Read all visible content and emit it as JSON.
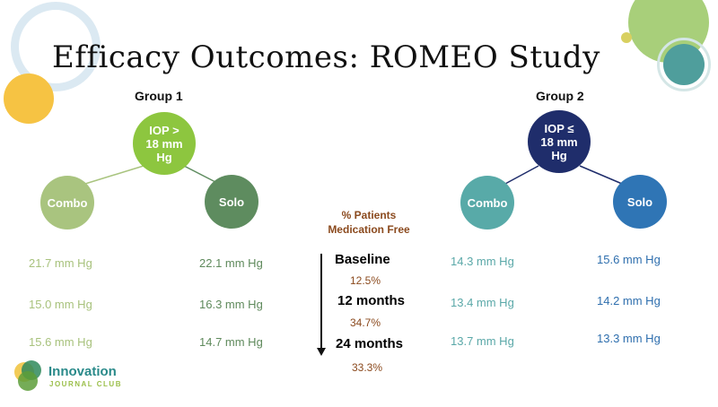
{
  "title": "Efficacy Outcomes: ROMEO Study",
  "group1": {
    "label": "Group 1",
    "criterion": "IOP >\n18 mm\nHg",
    "combo": "Combo",
    "solo": "Solo",
    "combo_values": [
      "21.7 mm Hg",
      "15.0 mm Hg",
      "15.6 mm Hg"
    ],
    "solo_values": [
      "22.1 mm Hg",
      "16.3 mm Hg",
      "14.7 mm Hg"
    ]
  },
  "group2": {
    "label": "Group 2",
    "criterion": "IOP ≤\n18 mm\nHg",
    "combo": "Combo",
    "solo": "Solo",
    "combo_values": [
      "14.3 mm Hg",
      "13.4 mm Hg",
      "13.7 mm Hg"
    ],
    "solo_values": [
      "15.6 mm Hg",
      "14.2 mm Hg",
      "13.3 mm Hg"
    ]
  },
  "middle": {
    "header_line1": "% Patients",
    "header_line2": "Medication Free",
    "timepoints": [
      {
        "label": "Baseline",
        "value": "12.5%"
      },
      {
        "label": "12 months",
        "value": "34.7%"
      },
      {
        "label": "24 months",
        "value": "33.3%"
      }
    ]
  },
  "logo": {
    "name": "Innovation",
    "sub": "JOURNAL CLUB"
  },
  "colors": {
    "g1_main": "#8dc63f",
    "g1_combo": "#a9c47f",
    "g1_solo": "#5e8c5f",
    "g2_main": "#1f2d6b",
    "g2_combo": "#58aaa8",
    "g2_solo": "#2f75b5",
    "brown": "#8b4a1e"
  }
}
